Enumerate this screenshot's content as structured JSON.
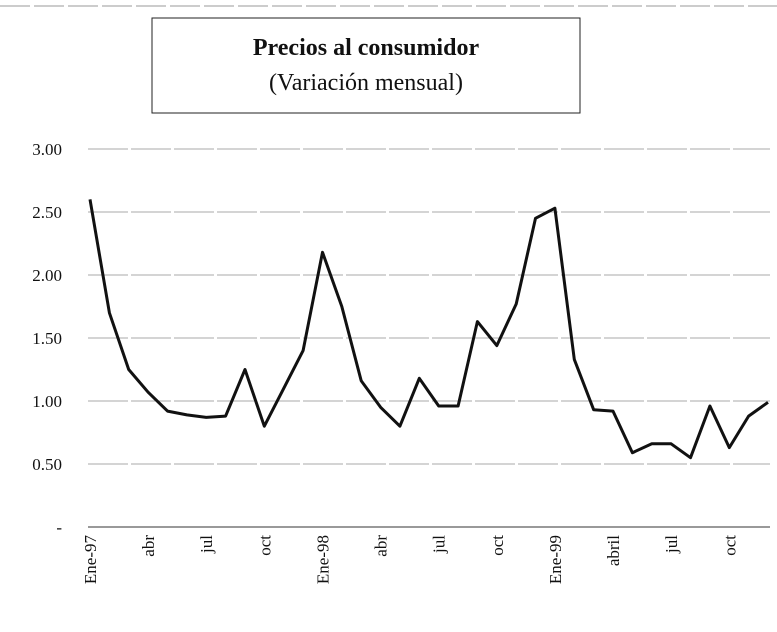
{
  "chart_data": {
    "type": "line",
    "title": "Precios al consumidor",
    "subtitle": "(Variación mensual)",
    "categories": [
      "Ene-97",
      null,
      null,
      "abr",
      null,
      null,
      "jul",
      null,
      null,
      "oct",
      null,
      null,
      "Ene-98",
      null,
      null,
      "abr",
      null,
      null,
      "jul",
      null,
      null,
      "oct",
      null,
      null,
      "Ene-99",
      null,
      null,
      "abril",
      null,
      null,
      "jul",
      null,
      null,
      "oct",
      null,
      null
    ],
    "series": [
      {
        "name": "Precios al consumidor",
        "color": "#111111",
        "values": [
          2.6,
          1.7,
          1.25,
          1.07,
          0.92,
          0.89,
          0.87,
          0.88,
          1.25,
          0.8,
          1.1,
          1.4,
          2.18,
          1.75,
          1.16,
          0.95,
          0.8,
          1.18,
          0.96,
          0.96,
          1.63,
          1.44,
          1.77,
          2.45,
          2.53,
          1.33,
          0.93,
          0.92,
          0.59,
          0.66,
          0.66,
          0.55,
          0.96,
          0.63,
          0.88,
          0.99
        ]
      }
    ],
    "ylim": [
      0,
      3
    ],
    "yticks": [
      {
        "value": 0,
        "label": "-"
      },
      {
        "value": 0.5,
        "label": "0.50"
      },
      {
        "value": 1,
        "label": "1.00"
      },
      {
        "value": 1.5,
        "label": "1.50"
      },
      {
        "value": 2,
        "label": "2.00"
      },
      {
        "value": 2.5,
        "label": "2.50"
      },
      {
        "value": 3,
        "label": "3.00"
      }
    ],
    "grid": true
  }
}
